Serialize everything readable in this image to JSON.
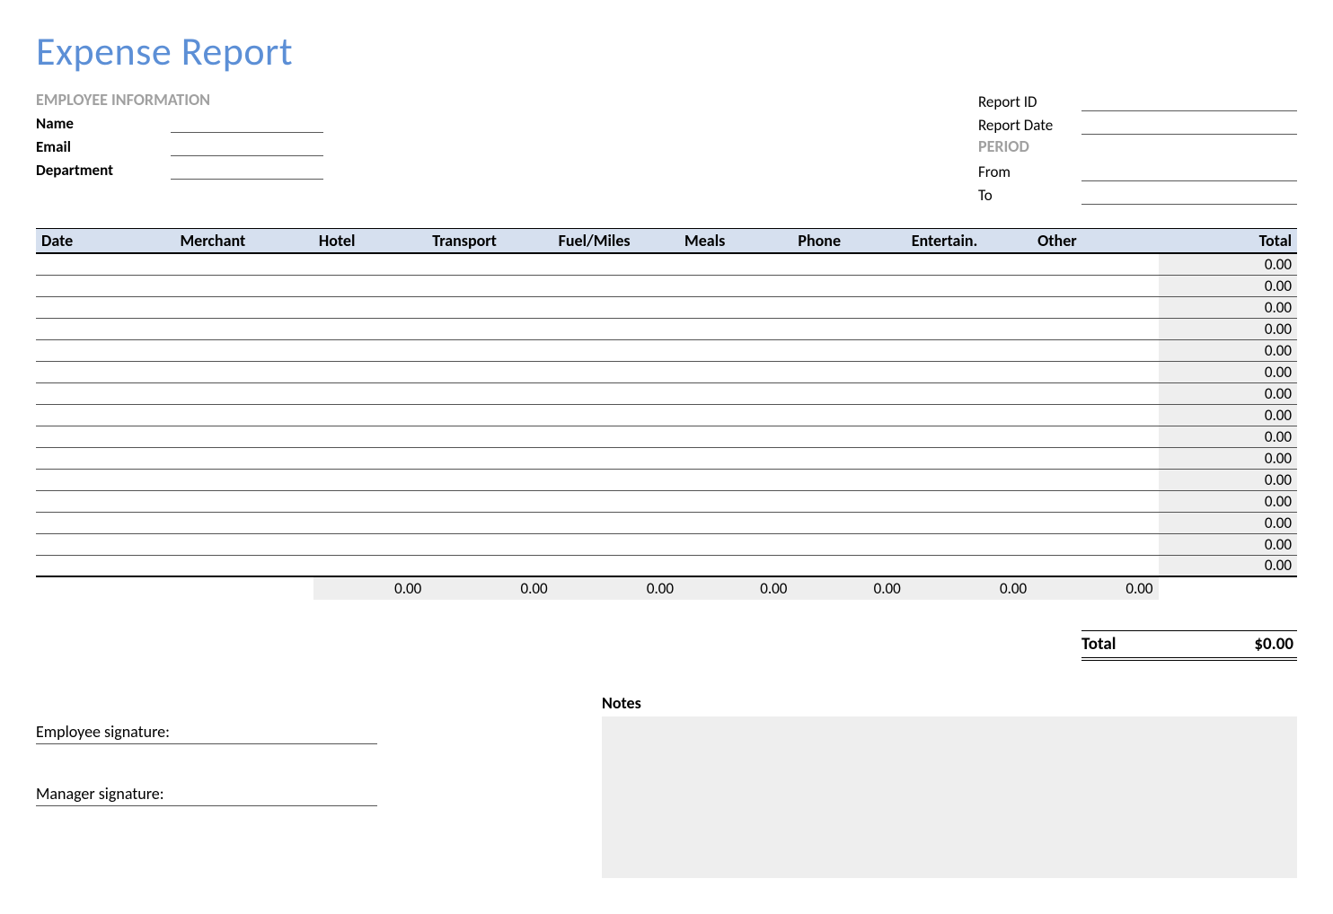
{
  "title": "Expense Report",
  "employee_section_heading": "EMPLOYEE INFORMATION",
  "employee_fields": {
    "name_label": "Name",
    "email_label": "Email",
    "department_label": "Department"
  },
  "report_fields": {
    "report_id_label": "Report ID",
    "report_date_label": "Report Date",
    "period_heading": "PERIOD",
    "from_label": "From",
    "to_label": "To"
  },
  "table": {
    "columns": [
      "Date",
      "Merchant",
      "Hotel",
      "Transport",
      "Fuel/Miles",
      "Meals",
      "Phone",
      "Entertain.",
      "Other",
      "Total"
    ],
    "col_widths_pct": [
      11,
      11,
      9,
      10,
      10,
      9,
      9,
      10,
      10,
      11
    ],
    "header_bg": "#d6e0ef",
    "row_count": 15,
    "row_total_default": "0.00",
    "subtotal_values": [
      "",
      "",
      "0.00",
      "0.00",
      "0.00",
      "0.00",
      "0.00",
      "0.00",
      "0.00",
      ""
    ],
    "total_col_bg": "#eeeeee"
  },
  "grand_total": {
    "label": "Total",
    "value": "$0.00"
  },
  "footer": {
    "employee_sig_label": "Employee signature:",
    "manager_sig_label": "Manager signature:",
    "notes_heading": "Notes"
  }
}
